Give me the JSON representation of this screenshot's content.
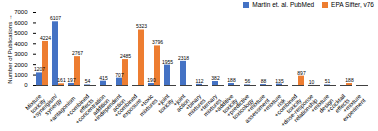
{
  "chart_data": {
    "type": "bar",
    "categories": [
      "Mixture\ntoxicity",
      "+synergism/\nsynergy",
      "+antagonism",
      "+combined\neffects",
      "+concentration\naddition",
      "+independent\naction",
      "+combined\nexposure",
      "+toxic\nmixtures",
      "+joint\ntoxicity",
      "+joint\naction",
      "+binary\nmixtures",
      "+ternary\nmixtures",
      "+additive\ntoxicity",
      "+predictive\ntoxicology",
      "+mixture\nassessment",
      "+mixture\nrisk",
      "+combined\ntoxicity",
      "+dose-response\nrelationship",
      "+mixture\ndesign",
      "+cocktail\neffects",
      "+mixture\nexperiment"
    ],
    "series": [
      {
        "name": "Martin et. al. PubMed",
        "color": "#4472c4",
        "values": [
          1207,
          6107,
          197,
          54,
          415,
          707,
          0,
          190,
          1955,
          2318,
          112,
          382,
          188,
          56,
          88,
          135,
          0,
          10,
          51,
          0,
          0
        ]
      },
      {
        "name": "EPA Sifter, v76",
        "color": "#ed7d31",
        "values": [
          4224,
          161,
          2767,
          0,
          0,
          2485,
          5323,
          3796,
          0,
          0,
          0,
          0,
          0,
          0,
          0,
          0,
          897,
          0,
          0,
          188,
          0
        ]
      }
    ],
    "ylabel": "Number of Publications",
    "ylim": [
      0,
      7000
    ],
    "yticks": [
      0,
      1000,
      2000,
      3000,
      4000,
      5000,
      6000,
      7000
    ],
    "data_labels": true,
    "legend": "upper right",
    "grid": false
  }
}
